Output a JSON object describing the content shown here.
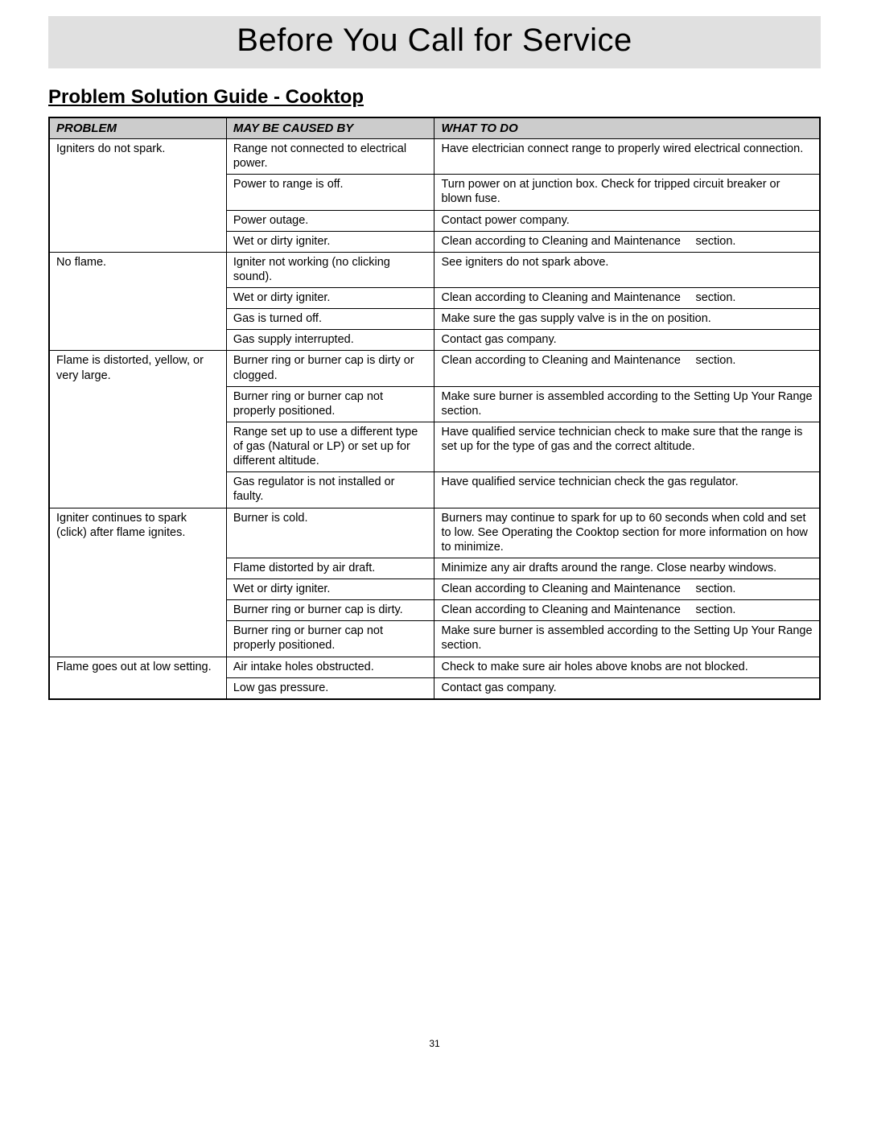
{
  "banner_title": "Before You Call for Service",
  "section_title": "Problem Solution Guide - Cooktop",
  "page_number": "31",
  "table": {
    "headers": [
      "PROBLEM",
      "MAY BE CAUSED BY",
      "WHAT TO DO"
    ],
    "header_bg": "#cccccc",
    "border_color": "#000000",
    "font_size_header": 15,
    "font_size_body": 14.5,
    "col_widths_pct": [
      23,
      27,
      50
    ],
    "groups": [
      {
        "problem": "Igniters do not spark.",
        "rows": [
          {
            "cause": "Range not connected to electrical power.",
            "action": "Have electrician connect range to properly wired electrical connection."
          },
          {
            "cause": "Power to range is off.",
            "action": "Turn power on at junction box. Check for tripped circuit breaker or blown fuse."
          },
          {
            "cause": "Power outage.",
            "action": "Contact power company."
          },
          {
            "cause": "Wet or dirty igniter.",
            "action": "Clean according to Cleaning and Maintenance  section."
          }
        ]
      },
      {
        "problem": "No flame.",
        "rows": [
          {
            "cause": "Igniter not working (no clicking sound).",
            "action": "See igniters do not spark above."
          },
          {
            "cause": "Wet or dirty igniter.",
            "action": "Clean according to Cleaning and Maintenance  section."
          },
          {
            "cause": "Gas is turned off.",
            "action": "Make sure the gas supply valve is in the on position."
          },
          {
            "cause": "Gas supply interrupted.",
            "action": "Contact gas company."
          }
        ]
      },
      {
        "problem": "Flame is distorted, yellow, or very large.",
        "rows": [
          {
            "cause": "Burner ring or burner cap is dirty or clogged.",
            "action": "Clean according to Cleaning and Maintenance  section."
          },
          {
            "cause": "Burner ring or burner cap not properly positioned.",
            "action": "Make sure burner is assembled according to the Setting Up Your Range section."
          },
          {
            "cause": "Range set up to use a different type of gas (Natural or LP) or set up for different altitude.",
            "action": "Have qualified service technician check to make sure that the range is set up for the type of gas and the correct altitude."
          },
          {
            "cause": "Gas regulator is not installed or faulty.",
            "action": "Have qualified service technician check the gas regulator."
          }
        ]
      },
      {
        "problem": "Igniter continues to spark (click) after flame ignites.",
        "rows": [
          {
            "cause": "Burner is cold.",
            "action": "Burners may continue to spark for up to 60 seconds when cold and set to low. See Operating the Cooktop section for more information on how to minimize."
          },
          {
            "cause": "Flame distorted by air draft.",
            "action": "Minimize any air drafts around the range. Close nearby windows."
          },
          {
            "cause": "Wet or dirty igniter.",
            "action": "Clean according to Cleaning and Maintenance  section."
          },
          {
            "cause": "Burner ring or burner cap is dirty.",
            "action": "Clean according to Cleaning and Maintenance  section."
          },
          {
            "cause": "Burner ring or burner cap not properly positioned.",
            "action": "Make sure burner is assembled according to the Setting Up Your Range section."
          }
        ]
      },
      {
        "problem": "Flame goes out at low setting.",
        "rows": [
          {
            "cause": "Air intake holes obstructed.",
            "action": "Check to make sure air holes above knobs are not blocked."
          },
          {
            "cause": "Low gas pressure.",
            "action": "Contact gas company."
          }
        ]
      }
    ]
  }
}
